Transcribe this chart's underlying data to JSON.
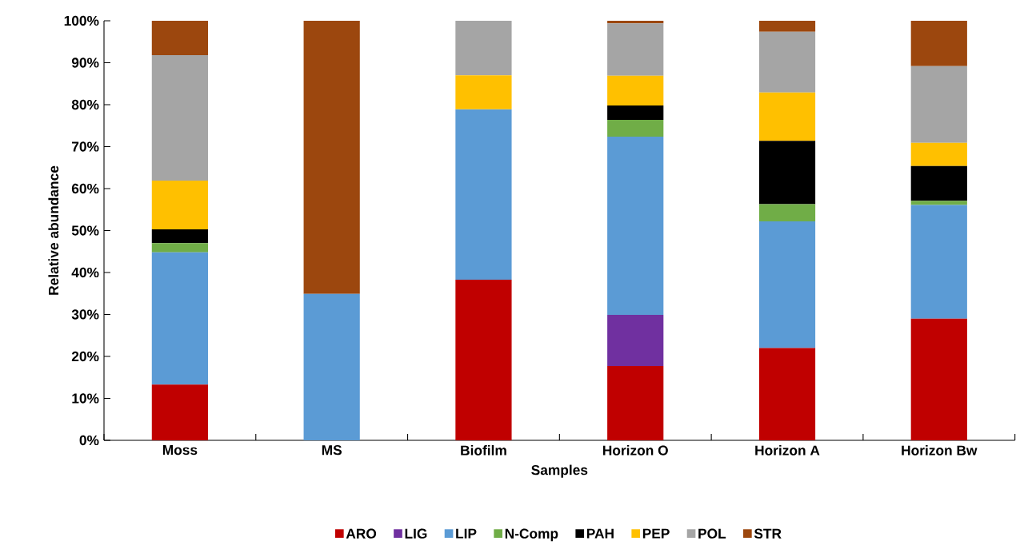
{
  "chart_data": {
    "type": "bar",
    "stacked": true,
    "xlabel": "Samples",
    "ylabel": "Relative abundance",
    "categories": [
      "Moss",
      "MS",
      "Biofilm",
      "Horizon O",
      "Horizon A",
      "Horizon Bw"
    ],
    "series": [
      {
        "name": "ARO",
        "color": "#c00000",
        "values": [
          13.3,
          0,
          38.3,
          17.7,
          22.0,
          29.0
        ]
      },
      {
        "name": "LIG",
        "color": "#7030a0",
        "values": [
          0,
          0,
          0,
          12.2,
          0,
          0
        ]
      },
      {
        "name": "LIP",
        "color": "#5b9bd5",
        "values": [
          31.5,
          34.9,
          40.6,
          42.5,
          30.2,
          27.1
        ]
      },
      {
        "name": "N-Comp",
        "color": "#70ad47",
        "values": [
          2.2,
          0,
          0,
          4.0,
          4.1,
          1.0
        ]
      },
      {
        "name": "PAH",
        "color": "#000000",
        "values": [
          3.3,
          0,
          0,
          3.4,
          15.1,
          8.3
        ]
      },
      {
        "name": "PEP",
        "color": "#ffc000",
        "values": [
          11.6,
          0,
          8.1,
          7.1,
          11.5,
          5.5
        ]
      },
      {
        "name": "POL",
        "color": "#a5a5a5",
        "values": [
          29.9,
          0,
          13.0,
          12.5,
          14.5,
          18.3
        ]
      },
      {
        "name": "STR",
        "color": "#9c470e",
        "values": [
          8.2,
          65.1,
          0,
          0.6,
          2.6,
          10.8
        ]
      }
    ],
    "ylim": [
      0,
      100
    ],
    "yticks": [
      {
        "value": 0,
        "label": "0%"
      },
      {
        "value": 10,
        "label": "10%"
      },
      {
        "value": 20,
        "label": "20%"
      },
      {
        "value": 30,
        "label": "30%"
      },
      {
        "value": 40,
        "label": "40%"
      },
      {
        "value": 50,
        "label": "50%"
      },
      {
        "value": 60,
        "label": "60%"
      },
      {
        "value": 70,
        "label": "70%"
      },
      {
        "value": 80,
        "label": "80%"
      },
      {
        "value": 90,
        "label": "90%"
      },
      {
        "value": 100,
        "label": "100%"
      }
    ],
    "legend": "bottom"
  }
}
